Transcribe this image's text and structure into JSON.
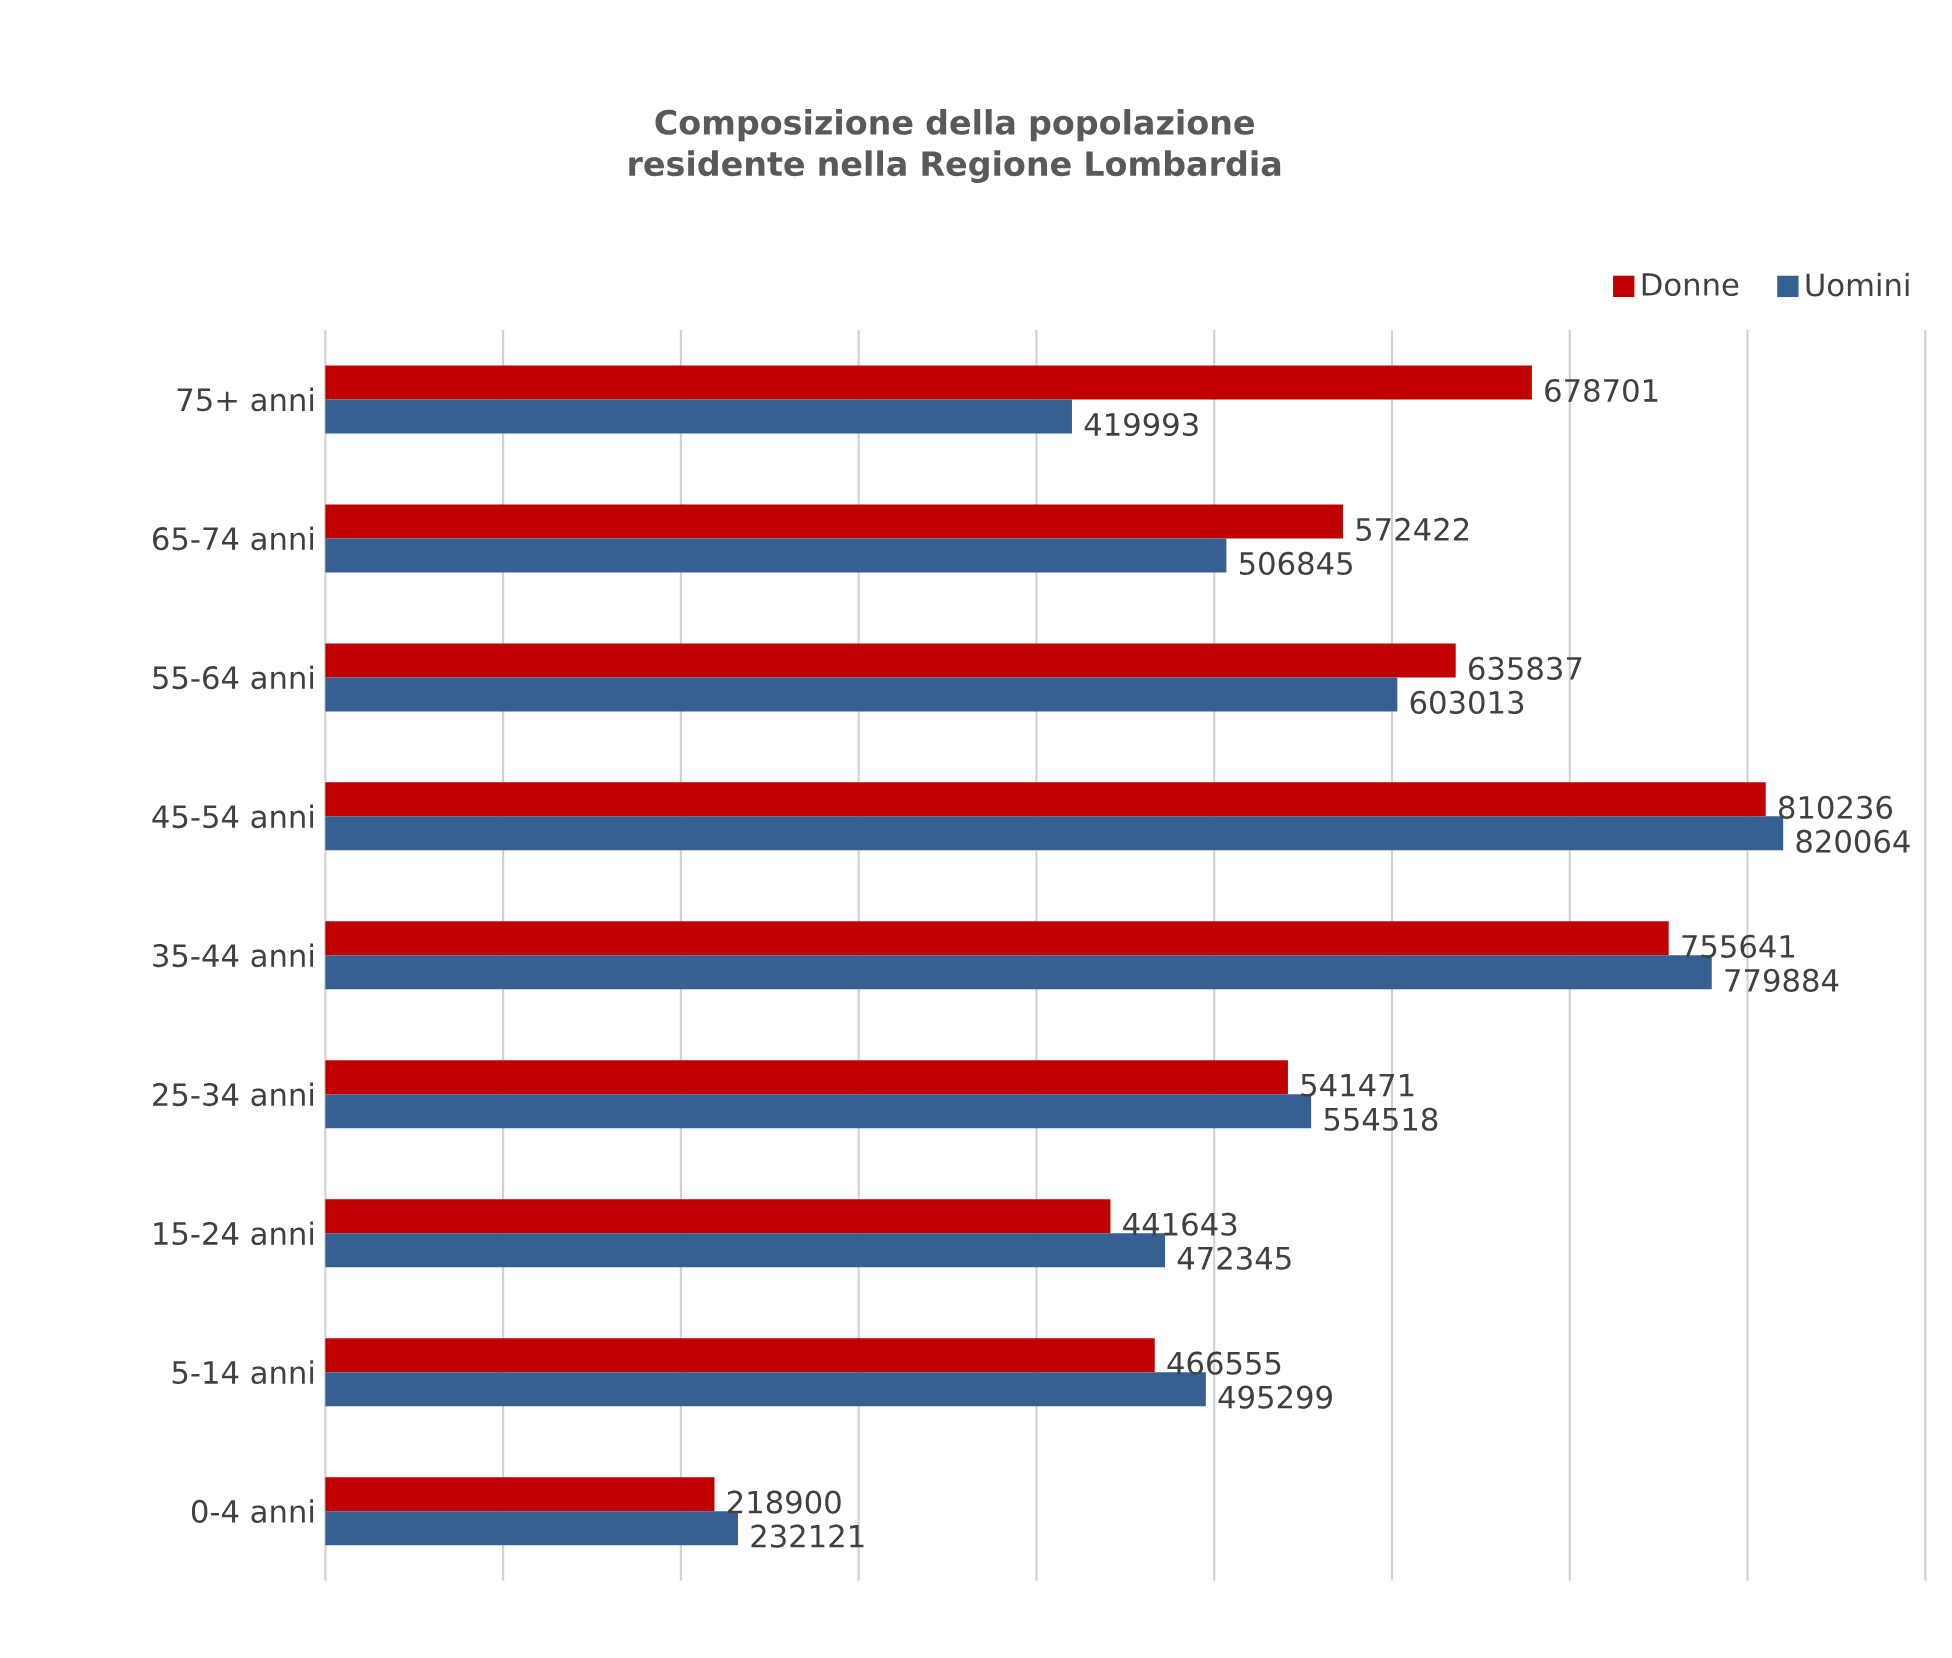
{
  "chart_data": {
    "type": "bar",
    "orientation": "horizontal",
    "title": "Composizione della popolazione residente nella Regione Lombardia",
    "categories": [
      "75+ anni",
      "65-74 anni",
      "55-64 anni",
      "45-54 anni",
      "35-44 anni",
      "25-34 anni",
      "15-24 anni",
      "5-14 anni",
      "0-4 anni"
    ],
    "series": [
      {
        "name": "Donne",
        "color": "#c00000",
        "values": [
          678701,
          572422,
          635837,
          810236,
          755641,
          541471,
          441643,
          466555,
          218900
        ]
      },
      {
        "name": "Uomini",
        "color": "#376092",
        "values": [
          419993,
          506845,
          603013,
          820064,
          779884,
          554518,
          472345,
          495299,
          232121
        ]
      }
    ],
    "xlim": [
      0,
      900000
    ],
    "xticks": [
      {
        "value": 0,
        "label": null
      },
      {
        "value": 100000,
        "label": null
      },
      {
        "value": 200000,
        "label": null
      },
      {
        "value": 300000,
        "label": null
      },
      {
        "value": 400000,
        "label": null
      },
      {
        "value": 500000,
        "label": null
      },
      {
        "value": 600000,
        "label": null
      },
      {
        "value": 700000,
        "label": null
      },
      {
        "value": 800000,
        "label": null
      },
      {
        "value": 900000,
        "label": null
      }
    ],
    "grid": true,
    "legend": "top right",
    "data_labels": true,
    "tick_labels": "y"
  }
}
